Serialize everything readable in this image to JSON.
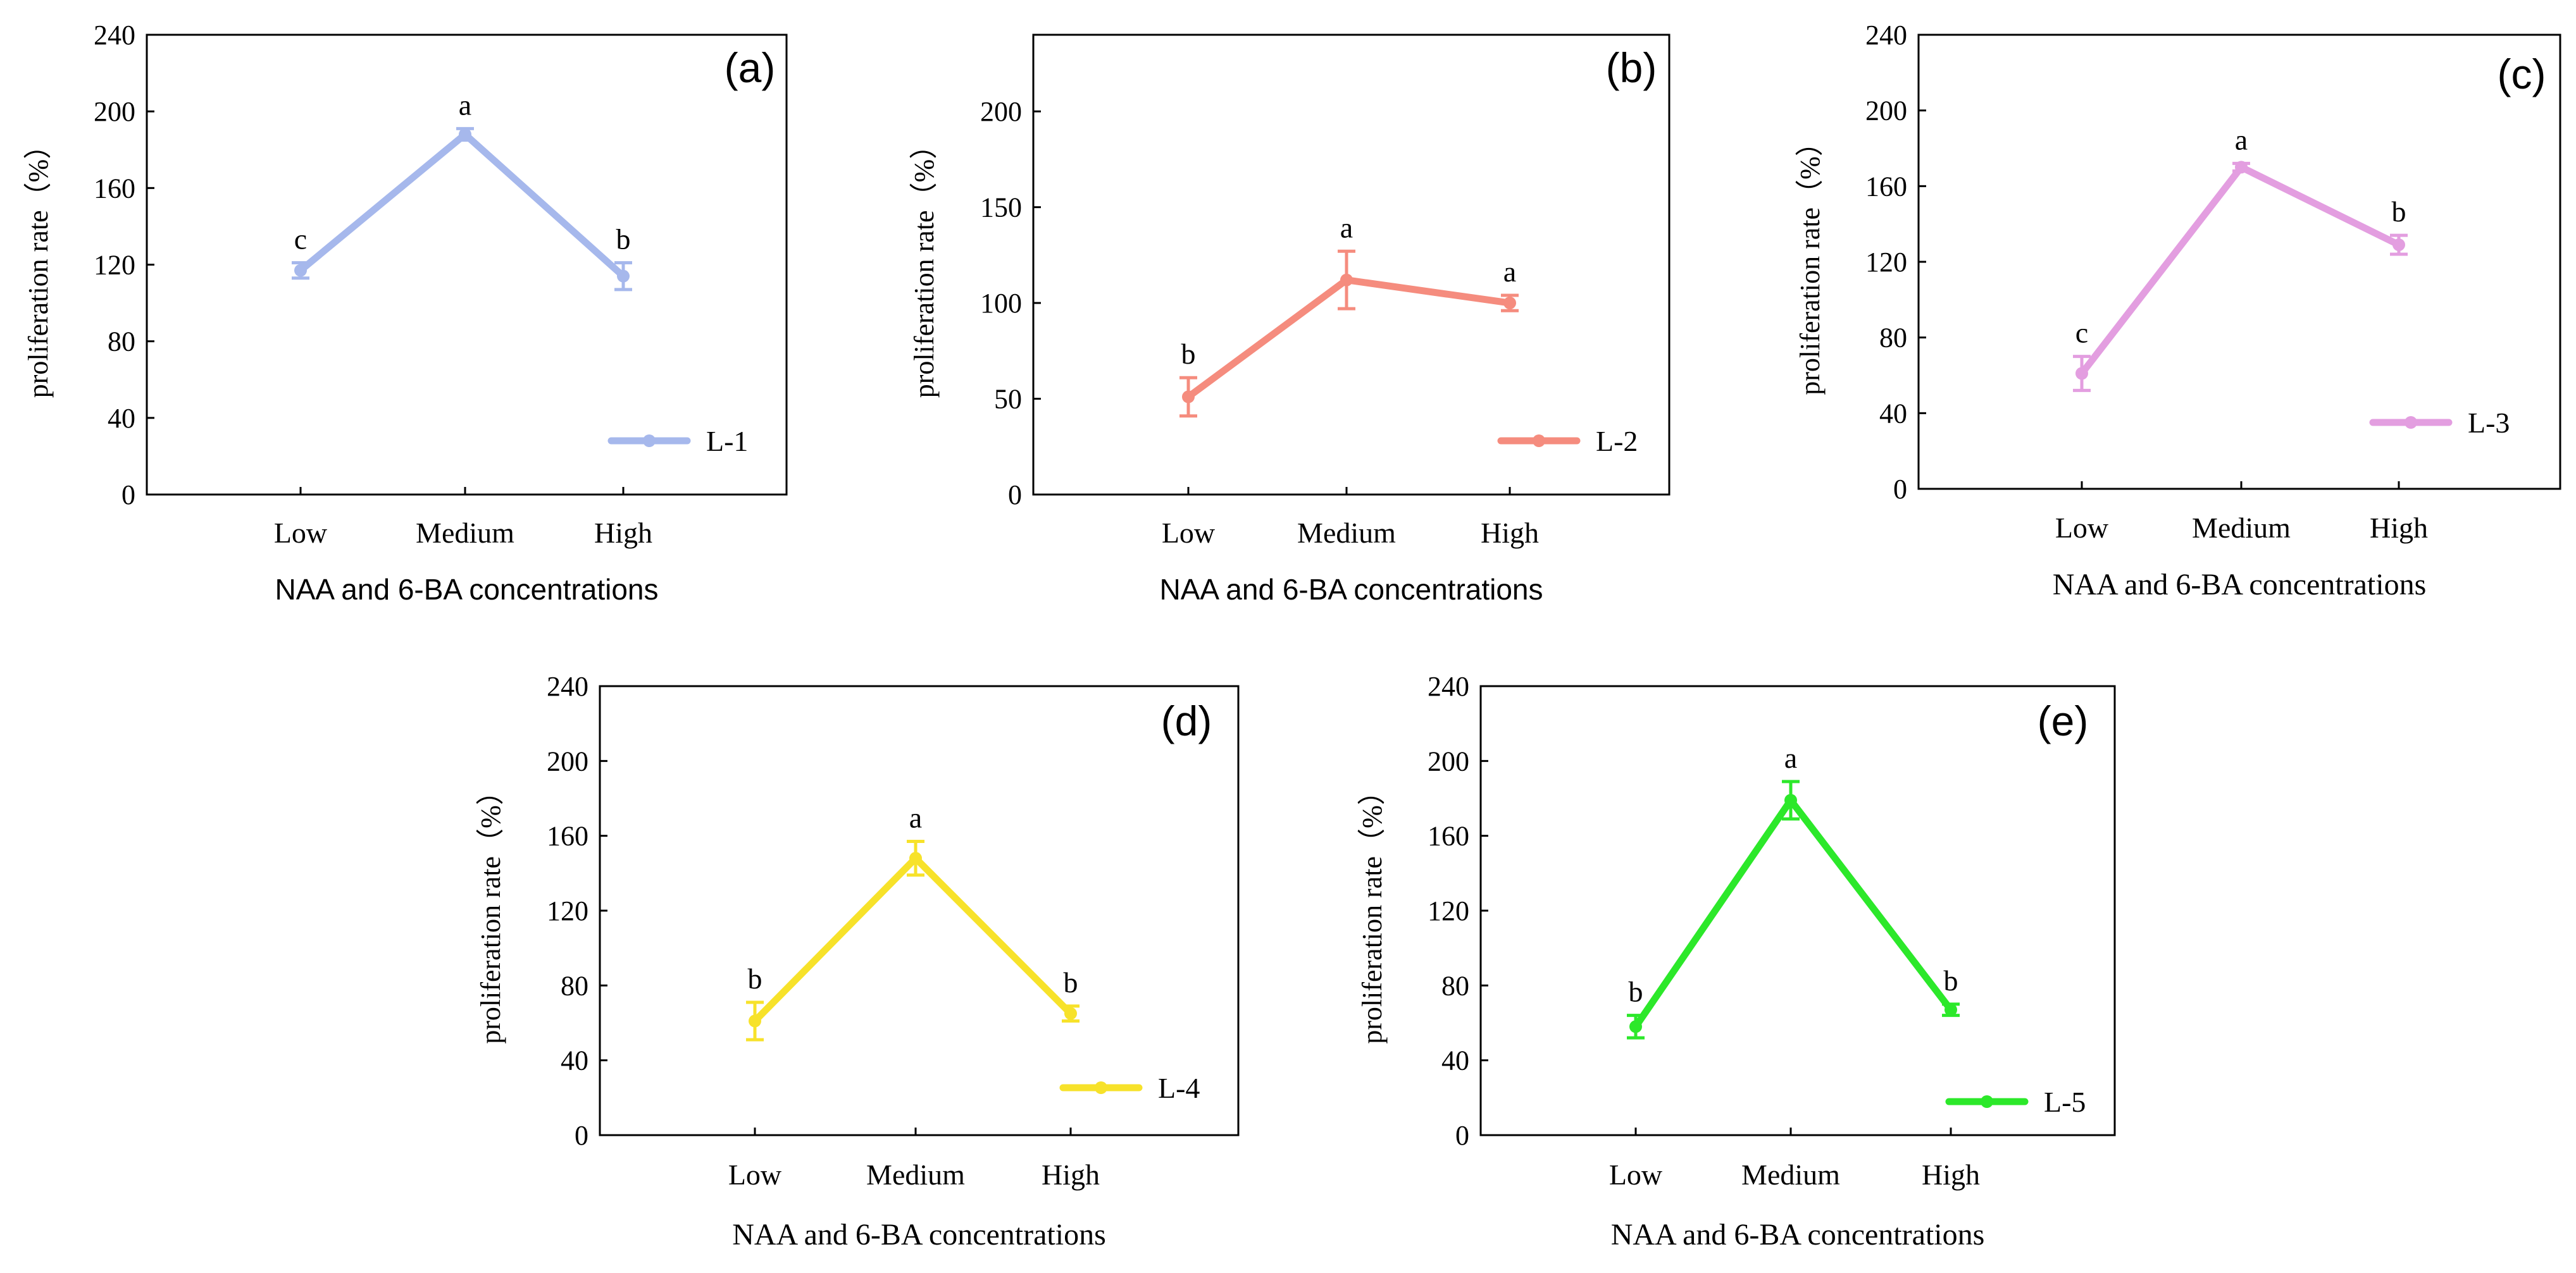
{
  "chart_data": [
    {
      "type": "line",
      "panel_label": "(a)",
      "xlabel": "NAA and 6-BA concentrations",
      "ylabel": "proliferation rate（%）",
      "categories": [
        "Low",
        "Medium",
        "High"
      ],
      "ylim": [
        0,
        240
      ],
      "yticks": [
        "0",
        "40",
        "80",
        "120",
        "160",
        "200",
        "240"
      ],
      "yticks_values": [
        0,
        40,
        80,
        120,
        160,
        200,
        240
      ],
      "series": [
        {
          "name": "L-1",
          "color": "#a6b8ec",
          "values": [
            117,
            188,
            114
          ],
          "errors": [
            4,
            3,
            7
          ],
          "significance": [
            "c",
            "a",
            "b"
          ]
        }
      ],
      "legend_position": "bottom-right"
    },
    {
      "type": "line",
      "panel_label": "(b)",
      "xlabel": "NAA and 6-BA concentrations",
      "ylabel": "proliferation rate（%）",
      "categories": [
        "Low",
        "Medium",
        "High"
      ],
      "ylim": [
        0,
        240
      ],
      "yticks": [
        "0",
        "50",
        "100",
        "150",
        "200"
      ],
      "yticks_values": [
        0,
        50,
        100,
        150,
        200
      ],
      "series": [
        {
          "name": "L-2",
          "color": "#f58c7e",
          "values": [
            51,
            112,
            100
          ],
          "errors": [
            10,
            15,
            4
          ],
          "significance": [
            "b",
            "a",
            "a"
          ]
        }
      ],
      "legend_position": "bottom-right"
    },
    {
      "type": "line",
      "panel_label": "(c)",
      "xlabel": "NAA and 6-BA concentrations",
      "ylabel": "proliferation rate（%）",
      "categories": [
        "Low",
        "Medium",
        "High"
      ],
      "ylim": [
        0,
        240
      ],
      "yticks": [
        "0",
        "40",
        "80",
        "120",
        "160",
        "200",
        "240"
      ],
      "yticks_values": [
        0,
        40,
        80,
        120,
        160,
        200,
        240
      ],
      "series": [
        {
          "name": "L-3",
          "color": "#e39ee0",
          "values": [
            61,
            170,
            129
          ],
          "errors": [
            9,
            2,
            5
          ],
          "significance": [
            "c",
            "a",
            "b"
          ]
        }
      ],
      "legend_position": "bottom-right"
    },
    {
      "type": "line",
      "panel_label": "(d)",
      "xlabel": "NAA and 6-BA concentrations",
      "ylabel": "proliferation rate（%）",
      "categories": [
        "Low",
        "Medium",
        "High"
      ],
      "ylim": [
        0,
        240
      ],
      "yticks": [
        "0",
        "40",
        "80",
        "120",
        "160",
        "200",
        "240"
      ],
      "yticks_values": [
        0,
        40,
        80,
        120,
        160,
        200,
        240
      ],
      "series": [
        {
          "name": "L-4",
          "color": "#f7e22a",
          "values": [
            61,
            148,
            65
          ],
          "errors": [
            10,
            9,
            4
          ],
          "significance": [
            "b",
            "a",
            "b"
          ]
        }
      ],
      "legend_position": "bottom-right"
    },
    {
      "type": "line",
      "panel_label": "(e)",
      "xlabel": "NAA and 6-BA concentrations",
      "ylabel": "proliferation rate（%）",
      "categories": [
        "Low",
        "Medium",
        "High"
      ],
      "ylim": [
        0,
        240
      ],
      "yticks": [
        "0",
        "40",
        "80",
        "120",
        "160",
        "200",
        "240"
      ],
      "yticks_values": [
        0,
        40,
        80,
        120,
        160,
        200,
        240
      ],
      "series": [
        {
          "name": "L-5",
          "color": "#2ce82a",
          "values": [
            58,
            179,
            67
          ],
          "errors": [
            6,
            10,
            3
          ],
          "significance": [
            "b",
            "a",
            "b"
          ]
        }
      ],
      "legend_position": "bottom-right"
    }
  ]
}
